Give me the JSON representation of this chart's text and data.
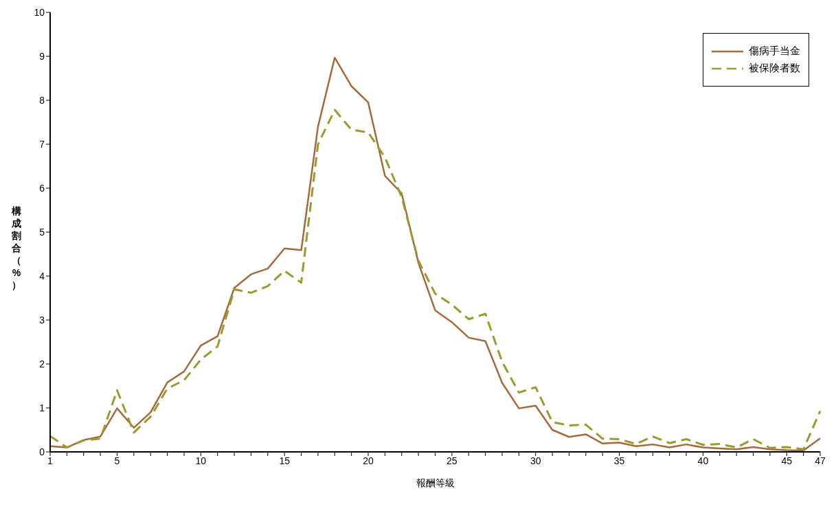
{
  "chart_data": {
    "type": "line",
    "xlabel": "報酬等級",
    "ylabel": "構成割合（%）",
    "categories": [
      "1",
      null,
      null,
      null,
      "5",
      null,
      null,
      null,
      null,
      "10",
      null,
      null,
      null,
      null,
      "15",
      null,
      null,
      null,
      null,
      "20",
      null,
      null,
      null,
      null,
      "25",
      null,
      null,
      null,
      null,
      "30",
      null,
      null,
      null,
      null,
      "35",
      null,
      null,
      null,
      null,
      "40",
      null,
      null,
      null,
      null,
      "45",
      null,
      "47"
    ],
    "series": [
      {
        "name": "傷病手当金",
        "color": "#a5693c",
        "line_style": "solid",
        "values": [
          0.13,
          0.1,
          0.27,
          0.35,
          0.99,
          0.55,
          0.9,
          1.58,
          1.83,
          2.42,
          2.63,
          3.73,
          4.04,
          4.17,
          4.63,
          4.59,
          7.4,
          8.97,
          8.32,
          7.95,
          6.28,
          5.88,
          4.3,
          3.22,
          2.95,
          2.6,
          2.52,
          1.57,
          0.99,
          1.05,
          0.5,
          0.34,
          0.4,
          0.19,
          0.21,
          0.13,
          0.17,
          0.1,
          0.17,
          0.1,
          0.08,
          0.06,
          0.11,
          0.06,
          0.04,
          0.03,
          0.31
        ]
      },
      {
        "name": "被保険者数",
        "color": "#9a9b2e",
        "line_style": "dashed",
        "values": [
          0.36,
          0.1,
          0.26,
          0.3,
          1.4,
          0.44,
          0.8,
          1.44,
          1.63,
          2.1,
          2.4,
          3.7,
          3.62,
          3.77,
          4.12,
          3.85,
          7.0,
          7.78,
          7.33,
          7.27,
          6.7,
          5.8,
          4.35,
          3.6,
          3.35,
          3.02,
          3.14,
          2.05,
          1.35,
          1.47,
          0.68,
          0.6,
          0.62,
          0.3,
          0.29,
          0.18,
          0.35,
          0.2,
          0.29,
          0.16,
          0.18,
          0.1,
          0.29,
          0.09,
          0.11,
          0.06,
          0.93
        ]
      }
    ],
    "ylim": [
      0,
      10
    ],
    "yticks": [
      0,
      1,
      2,
      3,
      4,
      5,
      6,
      7,
      8,
      9,
      10
    ],
    "grid": false,
    "legend": "top right",
    "marker": "none"
  }
}
